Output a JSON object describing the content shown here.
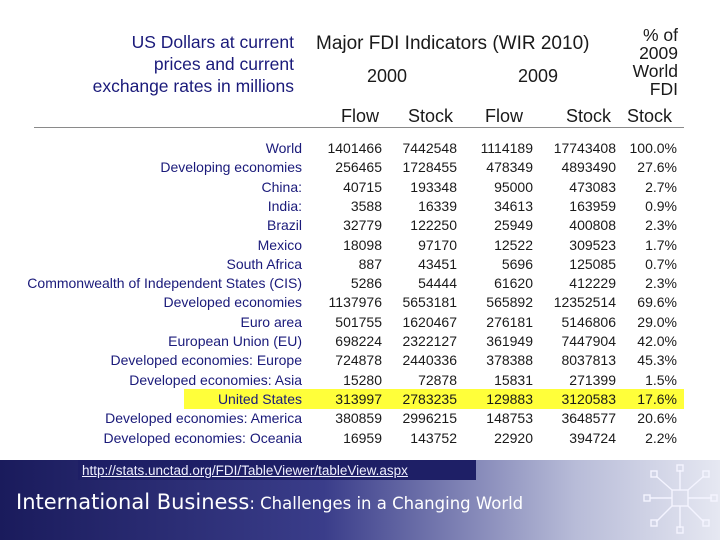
{
  "header": {
    "units": [
      "US Dollars at current",
      "prices and current",
      "exchange rates in millions"
    ],
    "title": "Major FDI Indicators (WIR 2010)",
    "year_2000": "2000",
    "year_2009": "2009",
    "pct_lines": [
      "% of",
      "2009",
      "World",
      "FDI",
      "Stock"
    ],
    "flow": "Flow",
    "stock": "Stock"
  },
  "rows": [
    {
      "label": "World",
      "f2000": "1401466",
      "s2000": "7442548",
      "f2009": "1114189",
      "s2009": "17743408",
      "pct": "100.0%"
    },
    {
      "label": "Developing economies",
      "f2000": "256465",
      "s2000": "1728455",
      "f2009": "478349",
      "s2009": "4893490",
      "pct": "27.6%"
    },
    {
      "label": "China:",
      "f2000": "40715",
      "s2000": "193348",
      "f2009": "95000",
      "s2009": "473083",
      "pct": "2.7%"
    },
    {
      "label": "India:",
      "f2000": "3588",
      "s2000": "16339",
      "f2009": "34613",
      "s2009": "163959",
      "pct": "0.9%"
    },
    {
      "label": "Brazil",
      "f2000": "32779",
      "s2000": "122250",
      "f2009": "25949",
      "s2009": "400808",
      "pct": "2.3%"
    },
    {
      "label": "Mexico",
      "f2000": "18098",
      "s2000": "97170",
      "f2009": "12522",
      "s2009": "309523",
      "pct": "1.7%"
    },
    {
      "label": "South Africa",
      "f2000": "887",
      "s2000": "43451",
      "f2009": "5696",
      "s2009": "125085",
      "pct": "0.7%"
    },
    {
      "label": "Commonwealth of Independent States (CIS)",
      "f2000": "5286",
      "s2000": "54444",
      "f2009": "61620",
      "s2009": "412229",
      "pct": "2.3%"
    },
    {
      "label": "Developed economies",
      "f2000": "1137976",
      "s2000": "5653181",
      "f2009": "565892",
      "s2009": "12352514",
      "pct": "69.6%"
    },
    {
      "label": "Euro area",
      "f2000": "501755",
      "s2000": "1620467",
      "f2009": "276181",
      "s2009": "5146806",
      "pct": "29.0%"
    },
    {
      "label": "European Union (EU)",
      "f2000": "698224",
      "s2000": "2322127",
      "f2009": "361949",
      "s2009": "7447904",
      "pct": "42.0%"
    },
    {
      "label": "Developed economies: Europe",
      "f2000": "724878",
      "s2000": "2440336",
      "f2009": "378388",
      "s2009": "8037813",
      "pct": "45.3%"
    },
    {
      "label": "Developed economies: Asia",
      "f2000": "15280",
      "s2000": "72878",
      "f2009": "15831",
      "s2009": "271399",
      "pct": "1.5%"
    },
    {
      "label": "United States",
      "f2000": "313997",
      "s2000": "2783235",
      "f2009": "129883",
      "s2009": "3120583",
      "pct": "17.6%"
    },
    {
      "label": "Developed economies: America",
      "f2000": "380859",
      "s2000": "2996215",
      "f2009": "148753",
      "s2009": "3648577",
      "pct": "20.6%"
    },
    {
      "label": "Developed economies: Oceania",
      "f2000": "16959",
      "s2000": "143752",
      "f2009": "22920",
      "s2009": "394724",
      "pct": "2.2%"
    }
  ],
  "footer": {
    "url": "http://stats.unctad.org/FDI/TableViewer/tableView.aspx",
    "course_main": "International Business",
    "course_sub": ": Challenges in a Changing World"
  },
  "colors": {
    "highlight": "#ffff3a",
    "label_text": "#1a1a7a",
    "footer_dark": "#1a1b5c"
  }
}
